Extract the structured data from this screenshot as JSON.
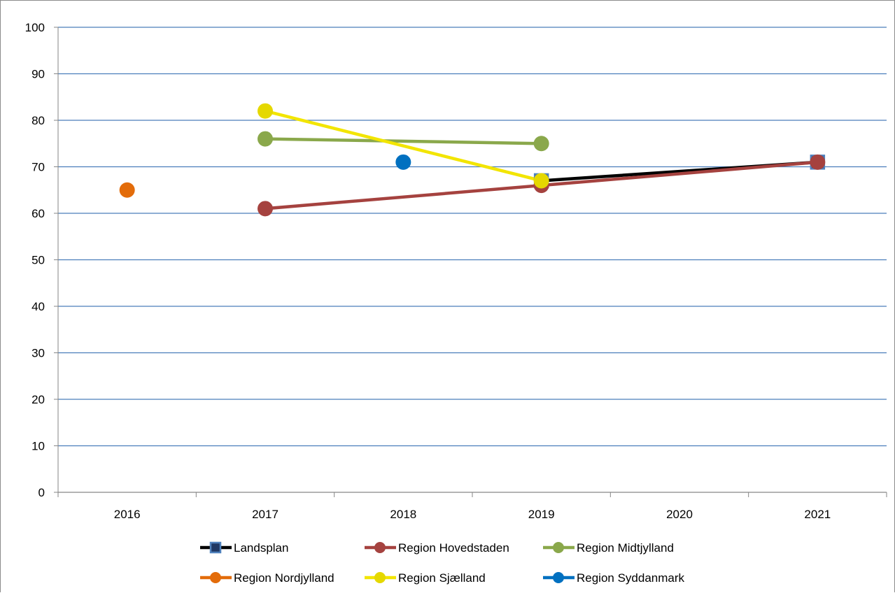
{
  "chart_data": {
    "type": "line",
    "title": "",
    "xlabel": "",
    "ylabel": "",
    "categories": [
      "2016",
      "2017",
      "2018",
      "2019",
      "2020",
      "2021"
    ],
    "ylim": [
      0,
      100
    ],
    "yticks": [
      0,
      10,
      20,
      30,
      40,
      50,
      60,
      70,
      80,
      90,
      100
    ],
    "grid": true,
    "legend_position": "bottom",
    "series": [
      {
        "name": "Landsplan",
        "color": "#000000",
        "marker": "square",
        "marker_fill": "#1f3864",
        "marker_edge": "#4f81bd",
        "values": [
          null,
          null,
          null,
          67,
          null,
          71
        ]
      },
      {
        "name": "Region Hovedstaden",
        "color": "#a5423f",
        "marker": "circle",
        "values": [
          null,
          61,
          null,
          66,
          null,
          71
        ]
      },
      {
        "name": "Region Midtjylland",
        "color": "#8aa84b",
        "marker": "circle",
        "values": [
          null,
          76,
          null,
          75,
          null,
          null
        ]
      },
      {
        "name": "Region Nordjylland",
        "color": "#e36c0a",
        "marker": "circle",
        "values": [
          65,
          null,
          null,
          null,
          null,
          null
        ]
      },
      {
        "name": "Region Sjælland",
        "color": "#f2e500",
        "marker": "circle",
        "marker_fill": "#e5d800",
        "values": [
          null,
          82,
          null,
          67,
          null,
          null
        ]
      },
      {
        "name": "Region Syddanmark",
        "color": "#0070c0",
        "marker": "circle",
        "values": [
          null,
          null,
          71,
          null,
          null,
          null
        ]
      }
    ]
  }
}
